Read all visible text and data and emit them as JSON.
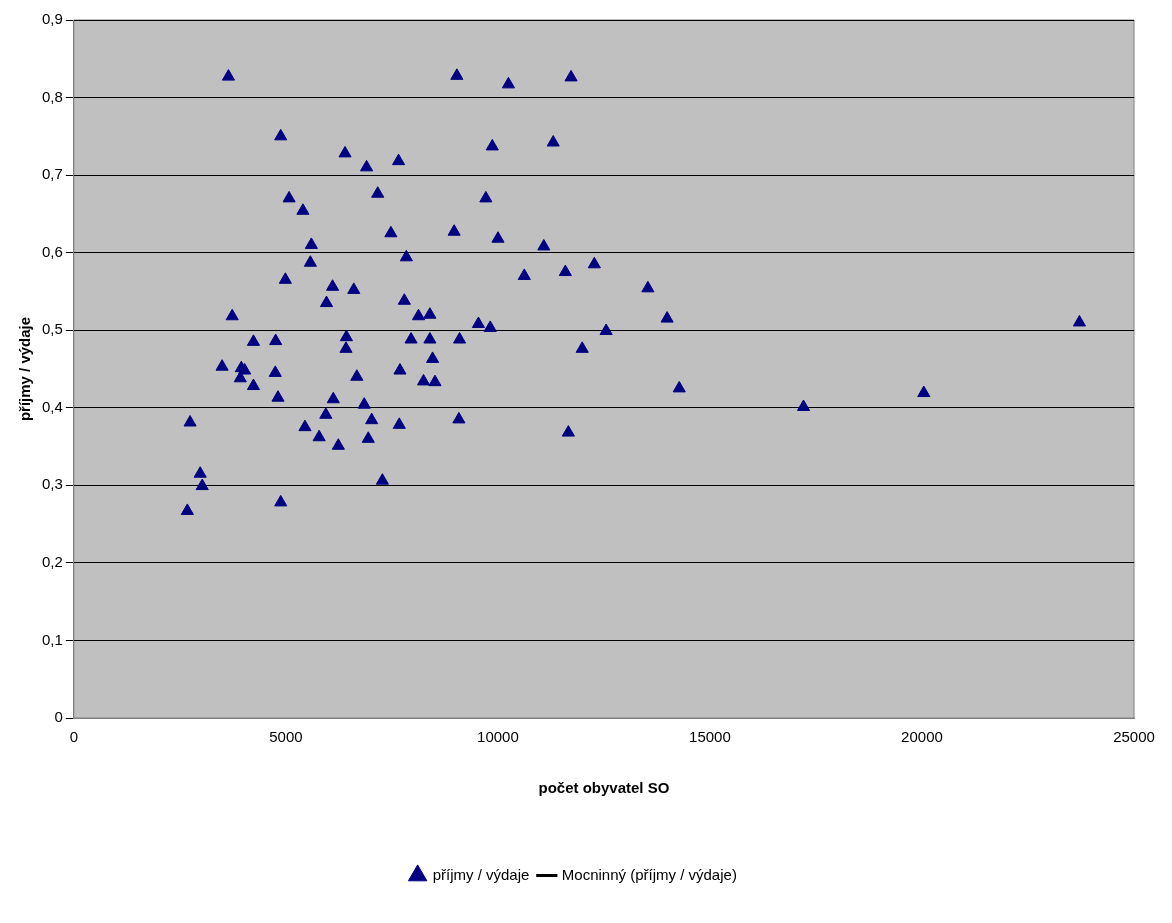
{
  "chart_data": {
    "type": "scatter",
    "xlabel": "počet obyvatel SO",
    "ylabel": "příjmy / výdaje",
    "xlim": [
      0,
      25000
    ],
    "xticks": [
      0,
      5000,
      10000,
      15000,
      20000,
      25000
    ],
    "ylim": [
      0,
      0.9
    ],
    "yticks": [
      0,
      {
        "value": 0.1,
        "label": "0,1"
      },
      {
        "value": 0.2,
        "label": "0,2"
      },
      {
        "value": 0.3,
        "label": "0,3"
      },
      {
        "value": 0.4,
        "label": "0,4"
      },
      {
        "value": 0.5,
        "label": "0,5"
      },
      {
        "value": 0.6,
        "label": "0,6"
      },
      {
        "value": 0.7,
        "label": "0,7"
      },
      {
        "value": 0.8,
        "label": "0,8"
      },
      {
        "value": 0.9,
        "label": "0,9"
      }
    ],
    "grid": "y",
    "legend": "bottom",
    "marker": "triangle",
    "series": [
      {
        "name": "příjmy / výdaje",
        "color": "#000080",
        "x": [
          3646,
          9032,
          4878,
          6395,
          6903,
          7657,
          5076,
          5402,
          7166,
          7476,
          8968,
          5601,
          7841,
          5577,
          4988,
          6101,
          6601,
          5958,
          7793,
          8127,
          8396,
          3734,
          4235,
          4759,
          6427,
          6418,
          7952,
          8396,
          9096,
          8460,
          3496,
          3949,
          4028,
          3925,
          4750,
          4235,
          6673,
          7690,
          8246,
          8516,
          4814,
          6118,
          6847,
          2741,
          5450,
          5942,
          7023,
          7674,
          9080,
          5784,
          6943,
          6237,
          2979,
          3027,
          7276,
          4878,
          2676,
          10248,
          11725,
          9867,
          11304,
          9716,
          10002,
          11082,
          12274,
          10622,
          11590,
          9540,
          9819,
          12552,
          11988,
          11661,
          13537,
          13990,
          14276,
          17207,
          20043,
          23713
        ],
        "values": [
          0.827,
          0.828,
          0.75,
          0.728,
          0.71,
          0.718,
          0.67,
          0.654,
          0.676,
          0.625,
          0.627,
          0.61,
          0.594,
          0.587,
          0.565,
          0.556,
          0.552,
          0.535,
          0.538,
          0.518,
          0.52,
          0.518,
          0.485,
          0.486,
          0.491,
          0.476,
          0.488,
          0.488,
          0.488,
          0.463,
          0.453,
          0.451,
          0.448,
          0.438,
          0.445,
          0.428,
          0.44,
          0.448,
          0.434,
          0.433,
          0.413,
          0.411,
          0.404,
          0.381,
          0.375,
          0.391,
          0.384,
          0.378,
          0.385,
          0.362,
          0.36,
          0.351,
          0.315,
          0.299,
          0.306,
          0.278,
          0.267,
          0.817,
          0.826,
          0.737,
          0.742,
          0.67,
          0.618,
          0.608,
          0.585,
          0.57,
          0.575,
          0.508,
          0.503,
          0.499,
          0.476,
          0.368,
          0.554,
          0.515,
          0.425,
          0.401,
          0.419,
          0.51
        ]
      },
      {
        "name": "Mocninný (příjmy / výdaje)",
        "type": "line",
        "color": "#000000"
      }
    ]
  }
}
